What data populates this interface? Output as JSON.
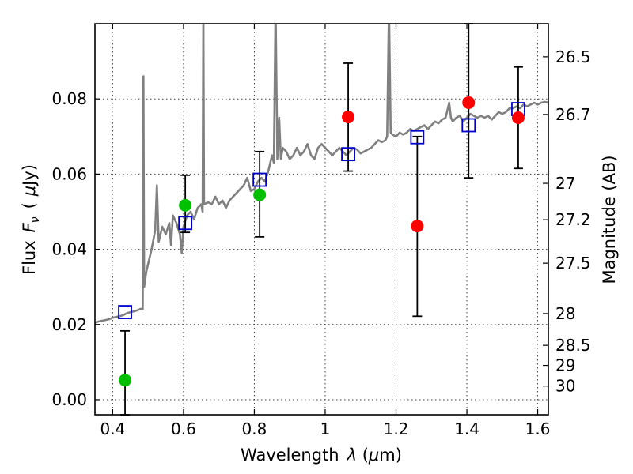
{
  "chart_data": {
    "type": "scatter",
    "xlabel_prefix": "Wavelength",
    "xlabel_symbol": "λ",
    "xlabel_unit_open": " (",
    "xlabel_unit_mu": "μ",
    "xlabel_unit_rest": "m)",
    "ylabel_prefix": "Flux",
    "ylabel_symbol": "F",
    "ylabel_sub": "ν",
    "ylabel_unit_open": "(",
    "ylabel_unit_mu": "μ",
    "ylabel_unit_rest": "Jy)",
    "y2label": "Magnitude (AB)",
    "xlim": [
      0.35,
      1.63
    ],
    "ylim": [
      -0.004,
      0.1
    ],
    "xticks": [
      0.4,
      0.6,
      0.8,
      1.0,
      1.2,
      1.4,
      1.6
    ],
    "xtick_labels": [
      "0.4",
      "0.6",
      "0.8",
      "1",
      "1.2",
      "1.4",
      "1.6"
    ],
    "yticks": [
      0.0,
      0.02,
      0.04,
      0.06,
      0.08
    ],
    "ytick_labels": [
      "0.00",
      "0.02",
      "0.04",
      "0.06",
      "0.08"
    ],
    "y2ticks": [
      {
        "label": "26.5",
        "mag": 26.5
      },
      {
        "label": "26.7",
        "mag": 26.7
      },
      {
        "label": "27",
        "mag": 27.0
      },
      {
        "label": "27.2",
        "mag": 27.2
      },
      {
        "label": "27.5",
        "mag": 27.5
      },
      {
        "label": "28",
        "mag": 28.0
      },
      {
        "label": "28.5",
        "mag": 28.5
      },
      {
        "label": "29",
        "mag": 29.0
      },
      {
        "label": "30",
        "mag": 30.0
      }
    ],
    "grid": true,
    "colors": {
      "spectrum": "#808080",
      "green_points": "#00c000",
      "red_points": "#ff0000",
      "model_squares": "#0000cc",
      "errorbars": "#000000"
    },
    "spectrum": [
      [
        0.35,
        0.0205
      ],
      [
        0.36,
        0.0208
      ],
      [
        0.37,
        0.021
      ],
      [
        0.38,
        0.0212
      ],
      [
        0.39,
        0.0214
      ],
      [
        0.4,
        0.0218
      ],
      [
        0.41,
        0.022
      ],
      [
        0.42,
        0.0222
      ],
      [
        0.43,
        0.0225
      ],
      [
        0.44,
        0.023
      ],
      [
        0.45,
        0.0233
      ],
      [
        0.46,
        0.0235
      ],
      [
        0.47,
        0.0238
      ],
      [
        0.48,
        0.0242
      ],
      [
        0.485,
        0.024
      ],
      [
        0.487,
        0.086
      ],
      [
        0.489,
        0.03
      ],
      [
        0.495,
        0.034
      ],
      [
        0.5,
        0.036
      ],
      [
        0.51,
        0.04
      ],
      [
        0.52,
        0.045
      ],
      [
        0.525,
        0.057
      ],
      [
        0.53,
        0.042
      ],
      [
        0.54,
        0.046
      ],
      [
        0.55,
        0.044
      ],
      [
        0.56,
        0.047
      ],
      [
        0.565,
        0.041
      ],
      [
        0.57,
        0.049
      ],
      [
        0.58,
        0.047
      ],
      [
        0.59,
        0.044
      ],
      [
        0.595,
        0.039
      ],
      [
        0.6,
        0.046
      ],
      [
        0.61,
        0.049
      ],
      [
        0.62,
        0.05
      ],
      [
        0.63,
        0.048
      ],
      [
        0.64,
        0.051
      ],
      [
        0.65,
        0.052
      ],
      [
        0.654,
        0.05
      ],
      [
        0.656,
        0.105
      ],
      [
        0.658,
        0.052
      ],
      [
        0.67,
        0.0525
      ],
      [
        0.68,
        0.052
      ],
      [
        0.69,
        0.054
      ],
      [
        0.7,
        0.052
      ],
      [
        0.71,
        0.053
      ],
      [
        0.72,
        0.051
      ],
      [
        0.73,
        0.053
      ],
      [
        0.74,
        0.054
      ],
      [
        0.75,
        0.055
      ],
      [
        0.76,
        0.056
      ],
      [
        0.77,
        0.057
      ],
      [
        0.78,
        0.059
      ],
      [
        0.79,
        0.0555
      ],
      [
        0.8,
        0.056
      ],
      [
        0.81,
        0.058
      ],
      [
        0.82,
        0.059
      ],
      [
        0.83,
        0.058
      ],
      [
        0.84,
        0.061
      ],
      [
        0.85,
        0.065
      ],
      [
        0.855,
        0.063
      ],
      [
        0.86,
        0.105
      ],
      [
        0.865,
        0.064
      ],
      [
        0.87,
        0.075
      ],
      [
        0.875,
        0.064
      ],
      [
        0.88,
        0.067
      ],
      [
        0.89,
        0.066
      ],
      [
        0.9,
        0.064
      ],
      [
        0.91,
        0.065
      ],
      [
        0.92,
        0.067
      ],
      [
        0.93,
        0.065
      ],
      [
        0.94,
        0.066
      ],
      [
        0.95,
        0.068
      ],
      [
        0.96,
        0.065
      ],
      [
        0.97,
        0.064
      ],
      [
        0.98,
        0.067
      ],
      [
        0.99,
        0.068
      ],
      [
        1.0,
        0.067
      ],
      [
        1.01,
        0.066
      ],
      [
        1.02,
        0.065
      ],
      [
        1.03,
        0.066
      ],
      [
        1.04,
        0.067
      ],
      [
        1.05,
        0.066
      ],
      [
        1.06,
        0.065
      ],
      [
        1.07,
        0.066
      ],
      [
        1.08,
        0.067
      ],
      [
        1.09,
        0.0665
      ],
      [
        1.1,
        0.0655
      ],
      [
        1.11,
        0.066
      ],
      [
        1.12,
        0.0665
      ],
      [
        1.13,
        0.067
      ],
      [
        1.14,
        0.068
      ],
      [
        1.15,
        0.069
      ],
      [
        1.16,
        0.0685
      ],
      [
        1.17,
        0.069
      ],
      [
        1.175,
        0.07
      ],
      [
        1.18,
        0.105
      ],
      [
        1.185,
        0.071
      ],
      [
        1.19,
        0.0705
      ],
      [
        1.2,
        0.07
      ],
      [
        1.21,
        0.071
      ],
      [
        1.22,
        0.0705
      ],
      [
        1.23,
        0.071
      ],
      [
        1.24,
        0.072
      ],
      [
        1.25,
        0.0715
      ],
      [
        1.26,
        0.072
      ],
      [
        1.27,
        0.0725
      ],
      [
        1.28,
        0.073
      ],
      [
        1.29,
        0.072
      ],
      [
        1.3,
        0.073
      ],
      [
        1.31,
        0.074
      ],
      [
        1.32,
        0.0735
      ],
      [
        1.33,
        0.0745
      ],
      [
        1.34,
        0.075
      ],
      [
        1.35,
        0.079
      ],
      [
        1.355,
        0.075
      ],
      [
        1.36,
        0.074
      ],
      [
        1.37,
        0.075
      ],
      [
        1.38,
        0.0755
      ],
      [
        1.39,
        0.074
      ],
      [
        1.4,
        0.075
      ],
      [
        1.41,
        0.076
      ],
      [
        1.42,
        0.0755
      ],
      [
        1.43,
        0.075
      ],
      [
        1.44,
        0.0755
      ],
      [
        1.45,
        0.075
      ],
      [
        1.46,
        0.0755
      ],
      [
        1.47,
        0.0745
      ],
      [
        1.48,
        0.0755
      ],
      [
        1.49,
        0.0765
      ],
      [
        1.5,
        0.076
      ],
      [
        1.51,
        0.0765
      ],
      [
        1.52,
        0.0775
      ],
      [
        1.53,
        0.0775
      ],
      [
        1.54,
        0.078
      ],
      [
        1.55,
        0.0775
      ],
      [
        1.56,
        0.0785
      ],
      [
        1.57,
        0.078
      ],
      [
        1.58,
        0.0785
      ],
      [
        1.59,
        0.079
      ],
      [
        1.6,
        0.0785
      ],
      [
        1.61,
        0.079
      ],
      [
        1.62,
        0.0792
      ],
      [
        1.63,
        0.079
      ]
    ],
    "green_points": [
      {
        "x": 0.435,
        "y": 0.0052,
        "yerr_low": -0.004,
        "yerr_high": 0.0183
      },
      {
        "x": 0.605,
        "y": 0.0517,
        "yerr_low": 0.0445,
        "yerr_high": 0.0597
      },
      {
        "x": 0.815,
        "y": 0.0545,
        "yerr_low": 0.0433,
        "yerr_high": 0.066
      }
    ],
    "red_points": [
      {
        "x": 1.065,
        "y": 0.0752,
        "yerr_low": 0.0608,
        "yerr_high": 0.0895
      },
      {
        "x": 1.26,
        "y": 0.0462,
        "yerr_low": 0.0222,
        "yerr_high": 0.07
      },
      {
        "x": 1.405,
        "y": 0.079,
        "yerr_low": 0.059,
        "yerr_high": 0.1
      },
      {
        "x": 1.545,
        "y": 0.075,
        "yerr_low": 0.0615,
        "yerr_high": 0.0885
      }
    ],
    "model_squares": [
      {
        "x": 0.435,
        "y": 0.0233
      },
      {
        "x": 0.605,
        "y": 0.047
      },
      {
        "x": 0.815,
        "y": 0.0585
      },
      {
        "x": 1.065,
        "y": 0.0653
      },
      {
        "x": 1.26,
        "y": 0.0698
      },
      {
        "x": 1.405,
        "y": 0.073
      },
      {
        "x": 1.545,
        "y": 0.0773
      }
    ]
  }
}
